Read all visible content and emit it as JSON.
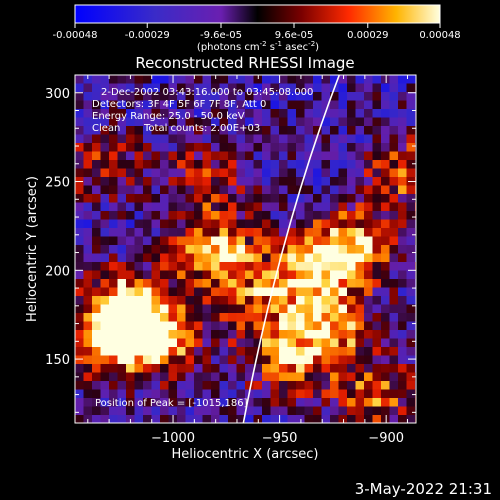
{
  "chart_data": {
    "type": "heatmap",
    "title": "Reconstructed RHESSI Image",
    "xlabel": "Heliocentric X (arcsec)",
    "ylabel": "Heliocentric Y (arcsec)",
    "xlim": [
      -1046,
      -886
    ],
    "ylim": [
      114,
      310
    ],
    "xticks": [
      -1000,
      -950,
      -900
    ],
    "yticks": [
      150,
      200,
      250,
      300
    ],
    "colorbar": {
      "range": [
        -0.00048,
        0.00048
      ],
      "tick_values": [
        -0.00048,
        -0.00029,
        -9.6e-05,
        9.6e-05,
        0.00029,
        0.00048
      ],
      "tick_labels": [
        "-0.00048",
        "-0.00029",
        "-9.6e-05",
        "9.6e-05",
        "0.00029",
        "0.00048"
      ],
      "unit_main": "(photons cm",
      "unit_sup1": "-2",
      "unit_mid1": " s",
      "unit_sup2": "-1",
      "unit_mid2": " asec",
      "unit_sup3": "-2",
      "unit_end": ")"
    },
    "annotations": {
      "time": "2-Dec-2002 03:43:16.000 to 03:45:08.000",
      "detectors": "Detectors: 3F 4F 5F 6F 7F 8F, Att 0",
      "energy": "Energy Range: 25.0 - 50.0 keV",
      "algo": "Clean",
      "counts": "Total counts: 2.00E+03",
      "peak": "Position of Peak = [-1015,186]"
    },
    "limb_points": [
      [
        -922,
        310
      ],
      [
        -950,
        222
      ],
      [
        -967,
        114
      ]
    ],
    "bright_regions": [
      {
        "x": -1020,
        "y": 180,
        "intensity": 1.0
      },
      {
        "x": -1030,
        "y": 160,
        "intensity": 0.9
      },
      {
        "x": -1005,
        "y": 160,
        "intensity": 0.7
      },
      {
        "x": -980,
        "y": 210,
        "intensity": 0.85
      },
      {
        "x": -960,
        "y": 180,
        "intensity": 0.5
      },
      {
        "x": -935,
        "y": 200,
        "intensity": 0.85
      },
      {
        "x": -925,
        "y": 170,
        "intensity": 0.75
      },
      {
        "x": -915,
        "y": 215,
        "intensity": 0.8
      },
      {
        "x": -945,
        "y": 150,
        "intensity": 0.7
      },
      {
        "x": -905,
        "y": 130,
        "intensity": 0.6
      },
      {
        "x": -890,
        "y": 255,
        "intensity": 0.6
      },
      {
        "x": -985,
        "y": 250,
        "intensity": 0.5
      },
      {
        "x": -1035,
        "y": 260,
        "intensity": 0.45
      }
    ]
  },
  "footer_date": "3-May-2022 21:31"
}
